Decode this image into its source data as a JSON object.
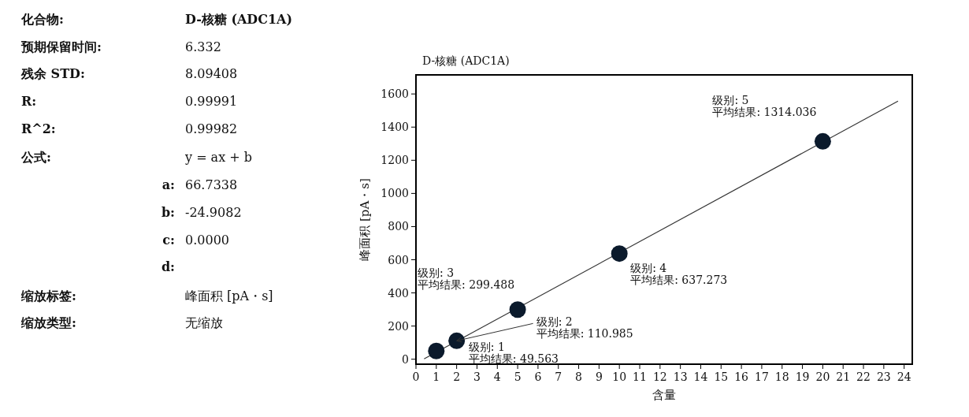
{
  "chart_data": [
    {
      "type": "other",
      "annotations": [
        "化合物:",
        "D-核糖 (ADC1A)",
        "预期保留时间:",
        "6.332",
        "残余 STD:",
        "8.09408",
        "R:",
        "0.99991",
        "R^2:",
        "0.99982",
        "公式:",
        "y = ax + b",
        "a:",
        "66.7338",
        "b:",
        "-24.9082",
        "c:",
        "0.0000",
        "d:",
        "缩放标签:",
        "峰面积 [pA・s]",
        "缩放类型:",
        "无缩放"
      ]
    },
    {
      "type": "scatter",
      "title": "D-核糖 (ADC1A)",
      "xlabel": "含量",
      "ylabel": "峰面积 [pA・s]",
      "x": [
        1,
        2,
        5,
        10,
        20
      ],
      "series": [
        {
          "type": "line",
          "x": [
            0.4,
            23.7
          ],
          "values": [
            2,
            1557
          ],
          "color": "#333333"
        },
        {
          "type": "scatter",
          "values": [
            49.563,
            110.985,
            299.488,
            637.273,
            1314.036
          ],
          "color": "#0b1a2c",
          "marker": "circle"
        }
      ],
      "xlim": [
        0,
        24.4
      ],
      "ylim": [
        -30,
        1715
      ],
      "xticks": [
        0,
        1,
        2,
        3,
        4,
        5,
        6,
        7,
        8,
        9,
        10,
        11,
        12,
        13,
        14,
        15,
        16,
        17,
        18,
        19,
        20,
        21,
        22,
        23,
        24
      ],
      "yticks": [
        0,
        200,
        400,
        600,
        800,
        1000,
        1200,
        1400,
        1600
      ],
      "grid": false,
      "annotations": [
        {
          "text": "级别: 1\n平均结果: 49.563",
          "x": 1,
          "y": 49.563
        },
        {
          "text": "级别: 2\n平均结果: 110.985",
          "x": 2,
          "y": 110.985
        },
        {
          "text": "级别: 3\n平均结果: 299.488",
          "x": 5,
          "y": 299.488
        },
        {
          "text": "级别: 4\n平均结果: 637.273",
          "x": 10,
          "y": 637.273
        },
        {
          "text": "级别: 5\n平均结果: 1314.036",
          "x": 20,
          "y": 1314.036
        }
      ]
    }
  ]
}
